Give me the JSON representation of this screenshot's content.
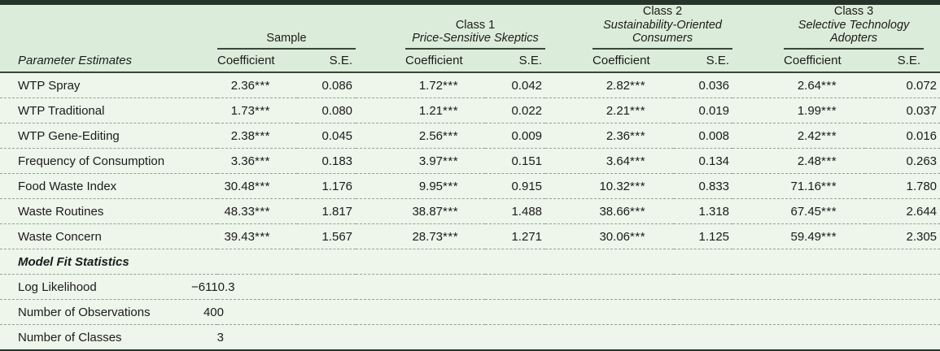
{
  "table": {
    "corner_label": "Parameter Estimates",
    "groups": [
      {
        "prefix": "Sample",
        "name": ""
      },
      {
        "prefix": "Class 1",
        "name": "Price-Sensitive Skeptics"
      },
      {
        "prefix": "Class 2",
        "name": "Sustainability-Oriented Consumers"
      },
      {
        "prefix": "Class 3",
        "name": "Selective Technology Adopters"
      }
    ],
    "subheaders": {
      "coefficient": "Coefficient",
      "se": "S.E."
    },
    "rows": [
      {
        "label": "WTP Spray",
        "cells": [
          {
            "coef": "2.36",
            "stars": "***",
            "se": "0.086"
          },
          {
            "coef": "1.72",
            "stars": "***",
            "se": "0.042"
          },
          {
            "coef": "2.82",
            "stars": "***",
            "se": "0.036"
          },
          {
            "coef": "2.64",
            "stars": "***",
            "se": "0.072"
          }
        ]
      },
      {
        "label": "WTP Traditional",
        "cells": [
          {
            "coef": "1.73",
            "stars": "***",
            "se": "0.080"
          },
          {
            "coef": "1.21",
            "stars": "***",
            "se": "0.022"
          },
          {
            "coef": "2.21",
            "stars": "***",
            "se": "0.019"
          },
          {
            "coef": "1.99",
            "stars": "***",
            "se": "0.037"
          }
        ]
      },
      {
        "label": "WTP Gene-Editing",
        "cells": [
          {
            "coef": "2.38",
            "stars": "***",
            "se": "0.045"
          },
          {
            "coef": "2.56",
            "stars": "***",
            "se": "0.009"
          },
          {
            "coef": "2.36",
            "stars": "***",
            "se": "0.008"
          },
          {
            "coef": "2.42",
            "stars": "***",
            "se": "0.016"
          }
        ]
      },
      {
        "label": "Frequency of Consumption",
        "cells": [
          {
            "coef": "3.36",
            "stars": "***",
            "se": "0.183"
          },
          {
            "coef": "3.97",
            "stars": "***",
            "se": "0.151"
          },
          {
            "coef": "3.64",
            "stars": "***",
            "se": "0.134"
          },
          {
            "coef": "2.48",
            "stars": "***",
            "se": "0.263"
          }
        ]
      },
      {
        "label": "Food Waste Index",
        "cells": [
          {
            "coef": "30.48",
            "stars": "***",
            "se": "1.176"
          },
          {
            "coef": "9.95",
            "stars": "***",
            "se": "0.915"
          },
          {
            "coef": "10.32",
            "stars": "***",
            "se": "0.833"
          },
          {
            "coef": "71.16",
            "stars": "***",
            "se": "1.780"
          }
        ]
      },
      {
        "label": "Waste Routines",
        "cells": [
          {
            "coef": "48.33",
            "stars": "***",
            "se": "1.817"
          },
          {
            "coef": "38.87",
            "stars": "***",
            "se": "1.488"
          },
          {
            "coef": "38.66",
            "stars": "***",
            "se": "1.318"
          },
          {
            "coef": "67.45",
            "stars": "***",
            "se": "2.644"
          }
        ]
      },
      {
        "label": "Waste Concern",
        "cells": [
          {
            "coef": "39.43",
            "stars": "***",
            "se": "1.567"
          },
          {
            "coef": "28.73",
            "stars": "***",
            "se": "1.271"
          },
          {
            "coef": "30.06",
            "stars": "***",
            "se": "1.125"
          },
          {
            "coef": "59.49",
            "stars": "***",
            "se": "2.305"
          }
        ]
      }
    ],
    "model_fit": {
      "section_label": "Model Fit Statistics",
      "rows": [
        {
          "label": "Log Likelihood",
          "value": "−6110.3"
        },
        {
          "label": "Number of Observations",
          "value": "400"
        },
        {
          "label": "Number of Classes",
          "value": "3"
        }
      ]
    },
    "colors": {
      "header_bg": "#dcecda",
      "body_bg": "#eef5eb",
      "rule_dark": "#26332a",
      "line": "#3a463c",
      "dashed": "#98a096",
      "text": "#1b1b1b"
    }
  }
}
